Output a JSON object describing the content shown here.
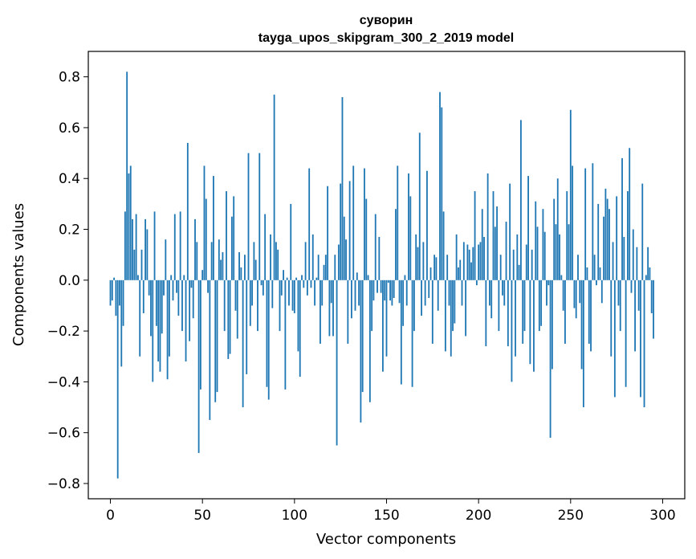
{
  "chart_data": {
    "type": "bar",
    "title": "суворин",
    "subtitle": "tayga_upos_skipgram_300_2_2019 model",
    "xlabel": "Vector components",
    "ylabel": "Components values",
    "xlim": [
      -12,
      312
    ],
    "ylim": [
      -0.86,
      0.9
    ],
    "xticks": [
      0,
      50,
      100,
      150,
      200,
      250,
      300
    ],
    "yticks": [
      -0.8,
      -0.6,
      -0.4,
      -0.2,
      0.0,
      0.2,
      0.4,
      0.6,
      0.8
    ],
    "ytick_labels": [
      "−0.8",
      "−0.6",
      "−0.4",
      "−0.2",
      "0.0",
      "0.2",
      "0.4",
      "0.6",
      "0.8"
    ],
    "bar_color": "#1f77b4",
    "grid": false,
    "values": [
      -0.1,
      -0.08,
      0.01,
      -0.14,
      -0.78,
      -0.1,
      -0.34,
      -0.18,
      0.27,
      0.82,
      0.42,
      0.45,
      0.24,
      0.12,
      0.26,
      0.02,
      -0.3,
      0.12,
      -0.13,
      0.24,
      0.2,
      -0.06,
      -0.22,
      -0.4,
      0.27,
      -0.18,
      -0.32,
      -0.36,
      -0.21,
      -0.06,
      0.16,
      -0.39,
      -0.3,
      0.02,
      -0.08,
      0.26,
      -0.05,
      -0.14,
      0.27,
      -0.2,
      0.02,
      -0.32,
      0.54,
      -0.24,
      -0.03,
      -0.15,
      0.24,
      0.15,
      -0.68,
      -0.43,
      0.04,
      0.45,
      0.32,
      -0.05,
      -0.55,
      0.15,
      0.41,
      -0.48,
      -0.44,
      0.16,
      0.08,
      0.11,
      -0.2,
      0.35,
      -0.31,
      -0.29,
      0.25,
      0.33,
      -0.12,
      -0.23,
      0.11,
      0.05,
      -0.5,
      0.1,
      -0.37,
      0.5,
      -0.18,
      -0.1,
      0.15,
      0.08,
      -0.2,
      0.5,
      -0.02,
      -0.06,
      0.26,
      -0.42,
      -0.47,
      0.18,
      -0.11,
      0.73,
      0.15,
      0.12,
      -0.2,
      -0.06,
      0.04,
      -0.43,
      0.01,
      -0.1,
      0.3,
      -0.12,
      -0.13,
      0.01,
      -0.28,
      -0.38,
      0.02,
      -0.03,
      0.15,
      -0.06,
      0.44,
      -0.03,
      0.18,
      -0.1,
      0.01,
      0.1,
      -0.25,
      -0.1,
      0.06,
      0.1,
      0.37,
      -0.22,
      -0.09,
      -0.22,
      0.1,
      -0.65,
      0.14,
      0.38,
      0.72,
      0.25,
      0.16,
      -0.25,
      0.39,
      -0.15,
      0.45,
      -0.12,
      0.03,
      -0.1,
      -0.56,
      -0.44,
      0.44,
      0.32,
      0.02,
      -0.48,
      -0.2,
      -0.08,
      0.26,
      -0.05,
      0.17,
      -0.05,
      -0.36,
      -0.08,
      -0.3,
      -0.01,
      -0.08,
      -0.1,
      -0.07,
      0.28,
      0.45,
      -0.09,
      -0.41,
      -0.18,
      0.02,
      -0.1,
      0.42,
      0.33,
      -0.42,
      -0.2,
      0.18,
      0.13,
      0.58,
      -0.14,
      0.15,
      -0.1,
      0.43,
      -0.07,
      0.05,
      -0.25,
      0.1,
      0.09,
      -0.12,
      0.74,
      0.68,
      0.27,
      -0.28,
      0.1,
      -0.1,
      -0.3,
      -0.2,
      -0.17,
      0.18,
      0.05,
      0.08,
      -0.1,
      0.15,
      -0.22,
      0.14,
      0.12,
      0.07,
      0.13,
      0.35,
      -0.02,
      0.14,
      0.15,
      0.28,
      0.17,
      -0.26,
      0.42,
      -0.1,
      -0.15,
      0.35,
      0.21,
      0.29,
      -0.2,
      0.1,
      -0.06,
      -0.1,
      0.23,
      -0.26,
      0.38,
      -0.4,
      0.12,
      -0.3,
      0.18,
      0.06,
      0.63,
      -0.25,
      -0.2,
      0.14,
      0.41,
      -0.33,
      0.12,
      -0.36,
      0.31,
      0.21,
      -0.2,
      -0.18,
      0.28,
      0.19,
      -0.1,
      -0.02,
      -0.62,
      -0.35,
      0.32,
      0.22,
      0.4,
      0.18,
      0.02,
      -0.12,
      -0.25,
      0.35,
      0.22,
      0.67,
      0.45,
      -0.11,
      -0.15,
      0.1,
      -0.09,
      -0.35,
      -0.5,
      0.44,
      0.05,
      -0.25,
      -0.28,
      0.46,
      0.1,
      -0.02,
      0.3,
      0.05,
      -0.09,
      0.25,
      0.36,
      0.32,
      0.28,
      -0.3,
      0.15,
      -0.46,
      0.33,
      -0.1,
      -0.2,
      0.48,
      0.17,
      -0.42,
      0.35,
      0.52,
      -0.05,
      0.2,
      -0.28,
      0.13,
      -0.12,
      -0.46,
      0.38,
      -0.5,
      0.02,
      0.13,
      0.05,
      -0.13,
      -0.23
    ]
  }
}
